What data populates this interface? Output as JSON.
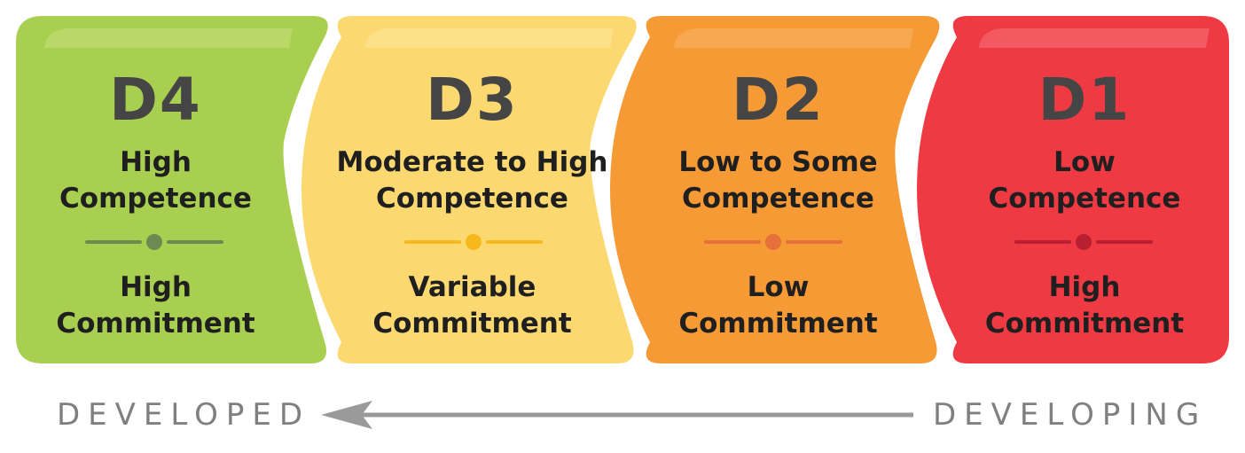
{
  "stages": [
    {
      "code": "D4",
      "competence": [
        "High",
        "Competence"
      ],
      "commitment": [
        "High",
        "Commitment"
      ],
      "colors": {
        "fill": "#a8cf4f",
        "highlight": "#c6e07e",
        "divider": "#6e8a52"
      }
    },
    {
      "code": "D3",
      "competence": [
        "Moderate to High",
        "Competence"
      ],
      "commitment": [
        "Variable",
        "Commitment"
      ],
      "colors": {
        "fill": "#fcd970",
        "highlight": "#fde79e",
        "divider": "#f6b81d"
      }
    },
    {
      "code": "D2",
      "competence": [
        "Low to Some",
        "Competence"
      ],
      "commitment": [
        "Low",
        "Commitment"
      ],
      "colors": {
        "fill": "#f59a34",
        "highlight": "#f8b56a",
        "divider": "#e5703a"
      }
    },
    {
      "code": "D1",
      "competence": [
        "Low",
        "Competence"
      ],
      "commitment": [
        "High",
        "Commitment"
      ],
      "colors": {
        "fill": "#ef3a44",
        "highlight": "#f4727a",
        "divider": "#b81f31"
      }
    }
  ],
  "axis": {
    "left_label": "DEVELOPED",
    "right_label": "DEVELOPING",
    "direction": "right-to-left",
    "arrow_color": "#9a9a9a"
  }
}
